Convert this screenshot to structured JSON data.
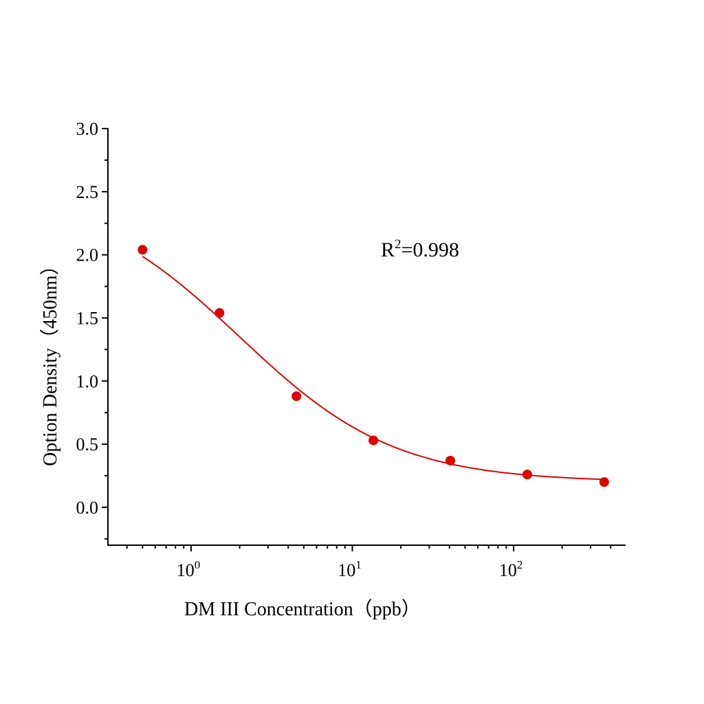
{
  "chart_data": {
    "type": "scatter",
    "xlabel": "DM III Concentration（ppb）",
    "ylabel": "Option Density（450nm）",
    "x_scale": "log",
    "xlim": [
      0.305,
      495
    ],
    "ylim": [
      -0.3,
      3.0
    ],
    "x_ticks": [
      {
        "value": 1,
        "base": "10",
        "exp": "0"
      },
      {
        "value": 10,
        "base": "10",
        "exp": "1"
      },
      {
        "value": 100,
        "base": "10",
        "exp": "2"
      }
    ],
    "y_ticks": [
      "0.0",
      "0.5",
      "1.0",
      "1.5",
      "2.0",
      "2.5",
      "3.0"
    ],
    "grid": false,
    "series": [
      {
        "x": [
          0.5,
          1.5,
          4.5,
          13.5,
          40.5,
          121.5,
          364.5
        ],
        "y": [
          2.04,
          1.54,
          0.88,
          0.53,
          0.37,
          0.26,
          0.2
        ],
        "color": "#e00000",
        "fit": "sigmoidal curve"
      }
    ],
    "annotation": {
      "base": "R",
      "sup": "2",
      "rest": "=0.998"
    }
  }
}
